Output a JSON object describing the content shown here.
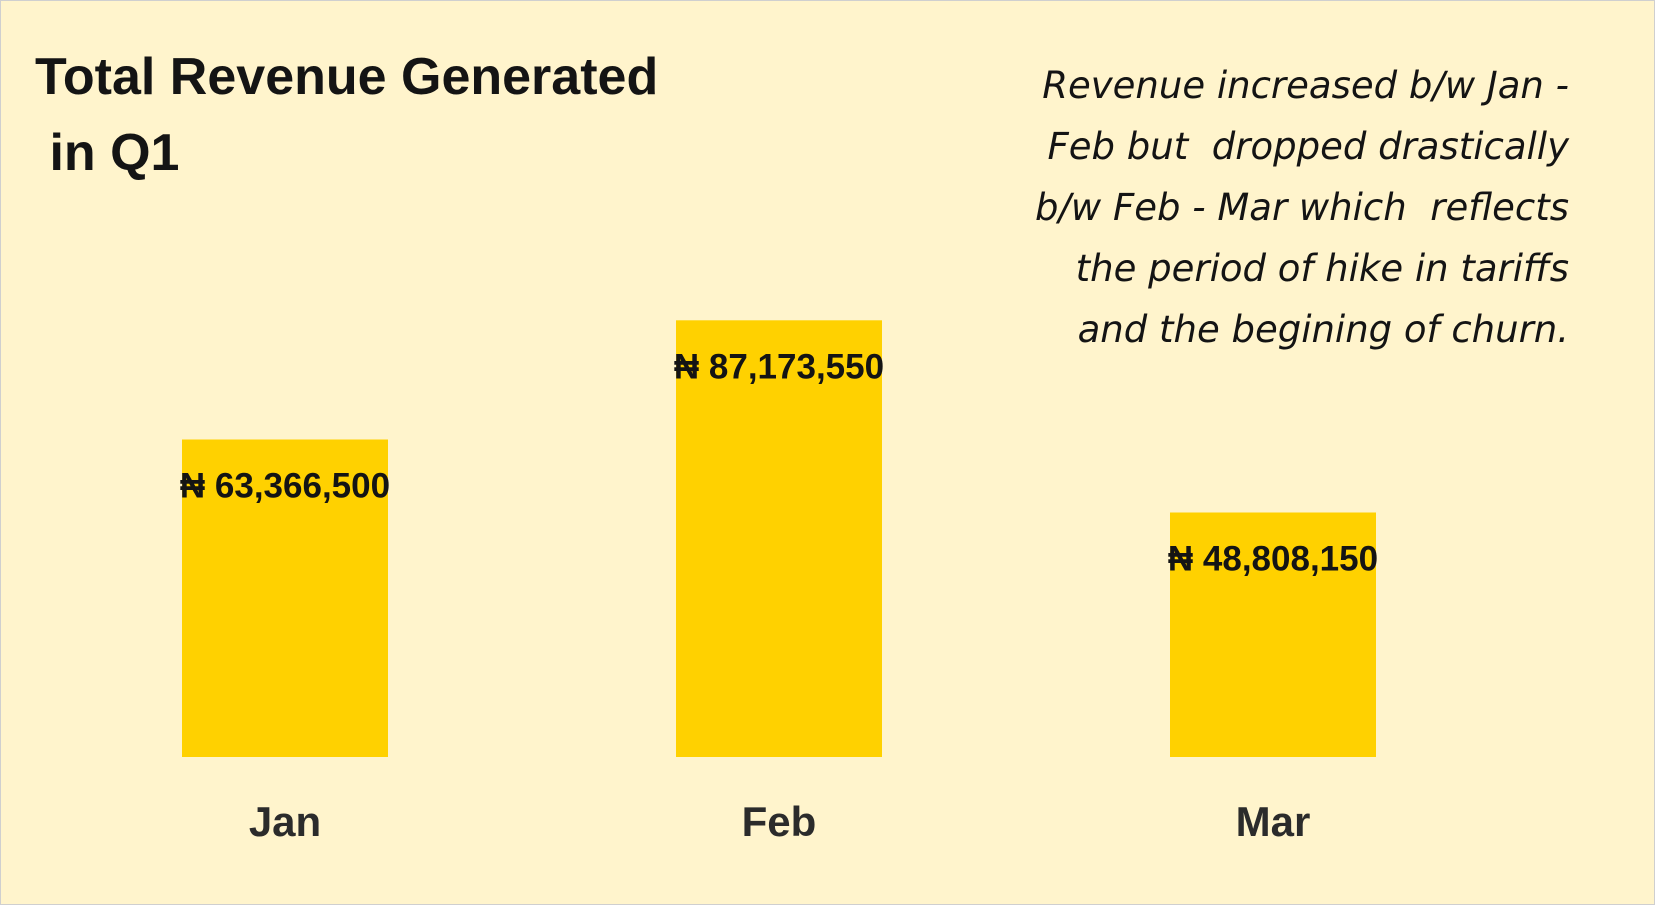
{
  "chart_data": {
    "type": "bar",
    "title": "Total Revenue Generated in Q1",
    "title_lines": [
      "Total Revenue Generated",
      " in Q1"
    ],
    "categories": [
      "Jan",
      "Feb",
      "Mar"
    ],
    "values": [
      63366500,
      87173550,
      48808150
    ],
    "value_labels": [
      "₦ 63,366,500",
      "₦ 87,173,550",
      "₦ 48,808,150"
    ],
    "annotation_lines": [
      "Revenue increased b/w Jan -",
      "Feb but  dropped drastically",
      "b/w Feb - Mar which  reflects",
      "the period of hike in tariffs",
      "and the begining of churn."
    ],
    "xlabel": "",
    "ylabel": "",
    "ylim": [
      0,
      100000000
    ],
    "grid": false,
    "legend": "none",
    "colors": {
      "bar": "#ffd100",
      "background": "#fff4cc",
      "text": "#141414"
    }
  }
}
